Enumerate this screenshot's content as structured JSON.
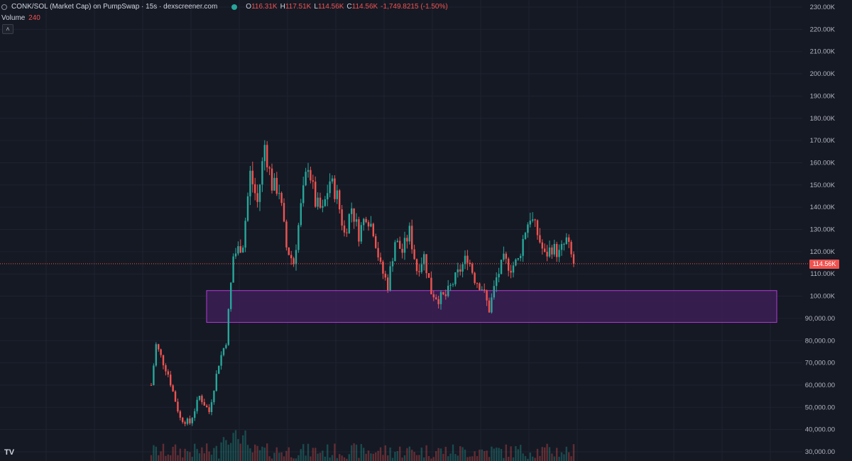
{
  "header": {
    "title": "CONK/SOL (Market Cap) on PumpSwap · 15s · dexscreener.com",
    "ohlc": [
      {
        "key": "O",
        "value": "116.31K"
      },
      {
        "key": "H",
        "value": "117.51K"
      },
      {
        "key": "L",
        "value": "114.56K"
      },
      {
        "key": "C",
        "value": "114.56K"
      }
    ],
    "change": "-1,749.8215 (-1.50%)"
  },
  "volume": {
    "label": "Volume",
    "value": "240"
  },
  "collapse_glyph": "˄",
  "logo_text": "TV",
  "price_axis": {
    "labels": [
      "230.00K",
      "220.00K",
      "210.00K",
      "200.00K",
      "190.00K",
      "180.00K",
      "170.00K",
      "160.00K",
      "150.00K",
      "140.00K",
      "130.00K",
      "120.00K",
      "110.00K",
      "100.00K",
      "90,000.00",
      "80,000.00",
      "70,000.00",
      "60,000.00",
      "50,000.00",
      "40,000.00",
      "30,000.00"
    ],
    "last_price_label": "114.56K",
    "last_price": 114.56
  },
  "zone": {
    "top": 102.5,
    "bottom": 88.2
  },
  "colors": {
    "background": "#151924",
    "up": "#26a69a",
    "down": "#ef5350",
    "zone_fill": "#3b1f55",
    "zone_border": "#b23bd6",
    "grid": "#1f2330",
    "axis_text": "#b2b5be"
  },
  "chart_data": {
    "type": "candlestick",
    "unit": "K market cap",
    "ylim": [
      30,
      230
    ],
    "close_path": [
      {
        "t": 0,
        "c": 60
      },
      {
        "t": 2,
        "c": 78
      },
      {
        "t": 7,
        "c": 65
      },
      {
        "t": 12,
        "c": 45
      },
      {
        "t": 16,
        "c": 43
      },
      {
        "t": 20,
        "c": 55
      },
      {
        "t": 24,
        "c": 48
      },
      {
        "t": 28,
        "c": 70
      },
      {
        "t": 31,
        "c": 80
      },
      {
        "t": 34,
        "c": 118
      },
      {
        "t": 38,
        "c": 124
      },
      {
        "t": 41,
        "c": 155
      },
      {
        "t": 44,
        "c": 142
      },
      {
        "t": 47,
        "c": 168
      },
      {
        "t": 50,
        "c": 150
      },
      {
        "t": 53,
        "c": 148
      },
      {
        "t": 56,
        "c": 122
      },
      {
        "t": 59,
        "c": 115
      },
      {
        "t": 62,
        "c": 140
      },
      {
        "t": 65,
        "c": 160
      },
      {
        "t": 68,
        "c": 142
      },
      {
        "t": 71,
        "c": 138
      },
      {
        "t": 74,
        "c": 152
      },
      {
        "t": 77,
        "c": 145
      },
      {
        "t": 80,
        "c": 128
      },
      {
        "t": 83,
        "c": 140
      },
      {
        "t": 86,
        "c": 128
      },
      {
        "t": 89,
        "c": 137
      },
      {
        "t": 92,
        "c": 130
      },
      {
        "t": 95,
        "c": 113
      },
      {
        "t": 98,
        "c": 105
      },
      {
        "t": 101,
        "c": 125
      },
      {
        "t": 104,
        "c": 120
      },
      {
        "t": 107,
        "c": 129
      },
      {
        "t": 110,
        "c": 112
      },
      {
        "t": 113,
        "c": 118
      },
      {
        "t": 116,
        "c": 102
      },
      {
        "t": 119,
        "c": 99
      },
      {
        "t": 122,
        "c": 100
      },
      {
        "t": 125,
        "c": 106
      },
      {
        "t": 128,
        "c": 112
      },
      {
        "t": 131,
        "c": 118
      },
      {
        "t": 134,
        "c": 108
      },
      {
        "t": 137,
        "c": 104
      },
      {
        "t": 140,
        "c": 94
      },
      {
        "t": 143,
        "c": 108
      },
      {
        "t": 146,
        "c": 116
      },
      {
        "t": 149,
        "c": 113
      },
      {
        "t": 152,
        "c": 116
      },
      {
        "t": 155,
        "c": 130
      },
      {
        "t": 157,
        "c": 136
      },
      {
        "t": 160,
        "c": 128
      },
      {
        "t": 163,
        "c": 118
      },
      {
        "t": 166,
        "c": 122
      },
      {
        "t": 169,
        "c": 119
      },
      {
        "t": 172,
        "c": 125
      },
      {
        "t": 175,
        "c": 114.56
      }
    ]
  }
}
